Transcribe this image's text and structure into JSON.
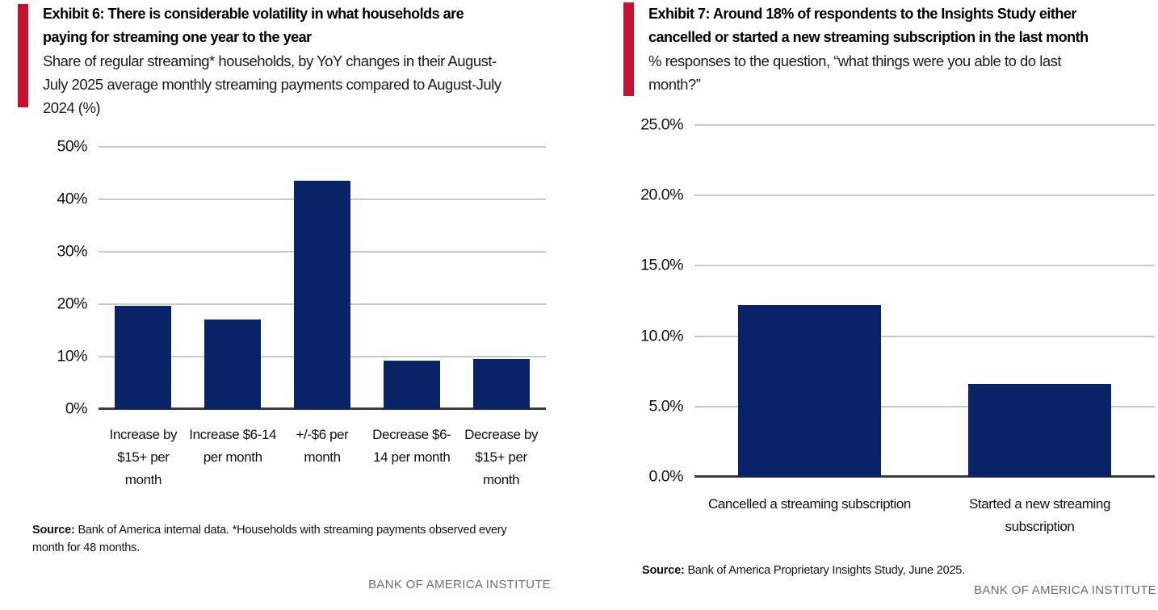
{
  "brand": {
    "accent_color": "#c41230",
    "bar_color": "#0a2368",
    "footer_text_color": "#6d6d6d",
    "institute_footer": "BANK OF AMERICA INSTITUTE"
  },
  "chart_data": [
    {
      "type": "bar",
      "title": "Exhibit 6: There is considerable volatility in what households are\npaying for streaming one year to the year",
      "subtitle": "Share of regular streaming* households, by YoY changes in their August-\nJuly 2025 average monthly streaming payments compared to August-July\n2024 (%)",
      "categories": [
        "Increase by $15+ per month",
        "Increase $6-14 per month",
        "+/-$6 per month",
        "Decrease $6-14 per month",
        "Decrease by $15+ per month"
      ],
      "values": [
        19.7,
        17.1,
        43.5,
        9.2,
        9.5
      ],
      "xlabel": "",
      "ylabel": "",
      "ylim": [
        0,
        50
      ],
      "ytick_values": [
        0,
        10,
        20,
        30,
        40,
        50
      ],
      "ytick_labels": [
        "0%",
        "10%",
        "20%",
        "30%",
        "40%",
        "50%"
      ],
      "grid": true,
      "legend": "none",
      "bar_color": "#0a2368",
      "source_label": "Source:",
      "source_text": "Bank of America internal data. *Households with streaming payments observed every month for 48 months.",
      "footer": "BANK OF AMERICA INSTITUTE"
    },
    {
      "type": "bar",
      "title": "Exhibit 7: Around 18% of respondents to the Insights Study either\ncancelled or started a new streaming subscription in the last month",
      "subtitle": "% responses to the question, “what things were you able to do last\nmonth?”",
      "categories": [
        "Cancelled a streaming subscription",
        "Started a new streaming subscription"
      ],
      "values": [
        12.2,
        6.6
      ],
      "xlabel": "",
      "ylabel": "",
      "ylim": [
        0,
        25
      ],
      "ytick_values": [
        0,
        5,
        10,
        15,
        20,
        25
      ],
      "ytick_labels": [
        "0.0%",
        "5.0%",
        "10.0%",
        "15.0%",
        "20.0%",
        "25.0%"
      ],
      "grid": true,
      "legend": "none",
      "bar_color": "#0a2368",
      "source_label": "Source:",
      "source_text": "Bank of America Proprietary Insights Study, June 2025.",
      "footer": "BANK OF AMERICA INSTITUTE"
    }
  ]
}
